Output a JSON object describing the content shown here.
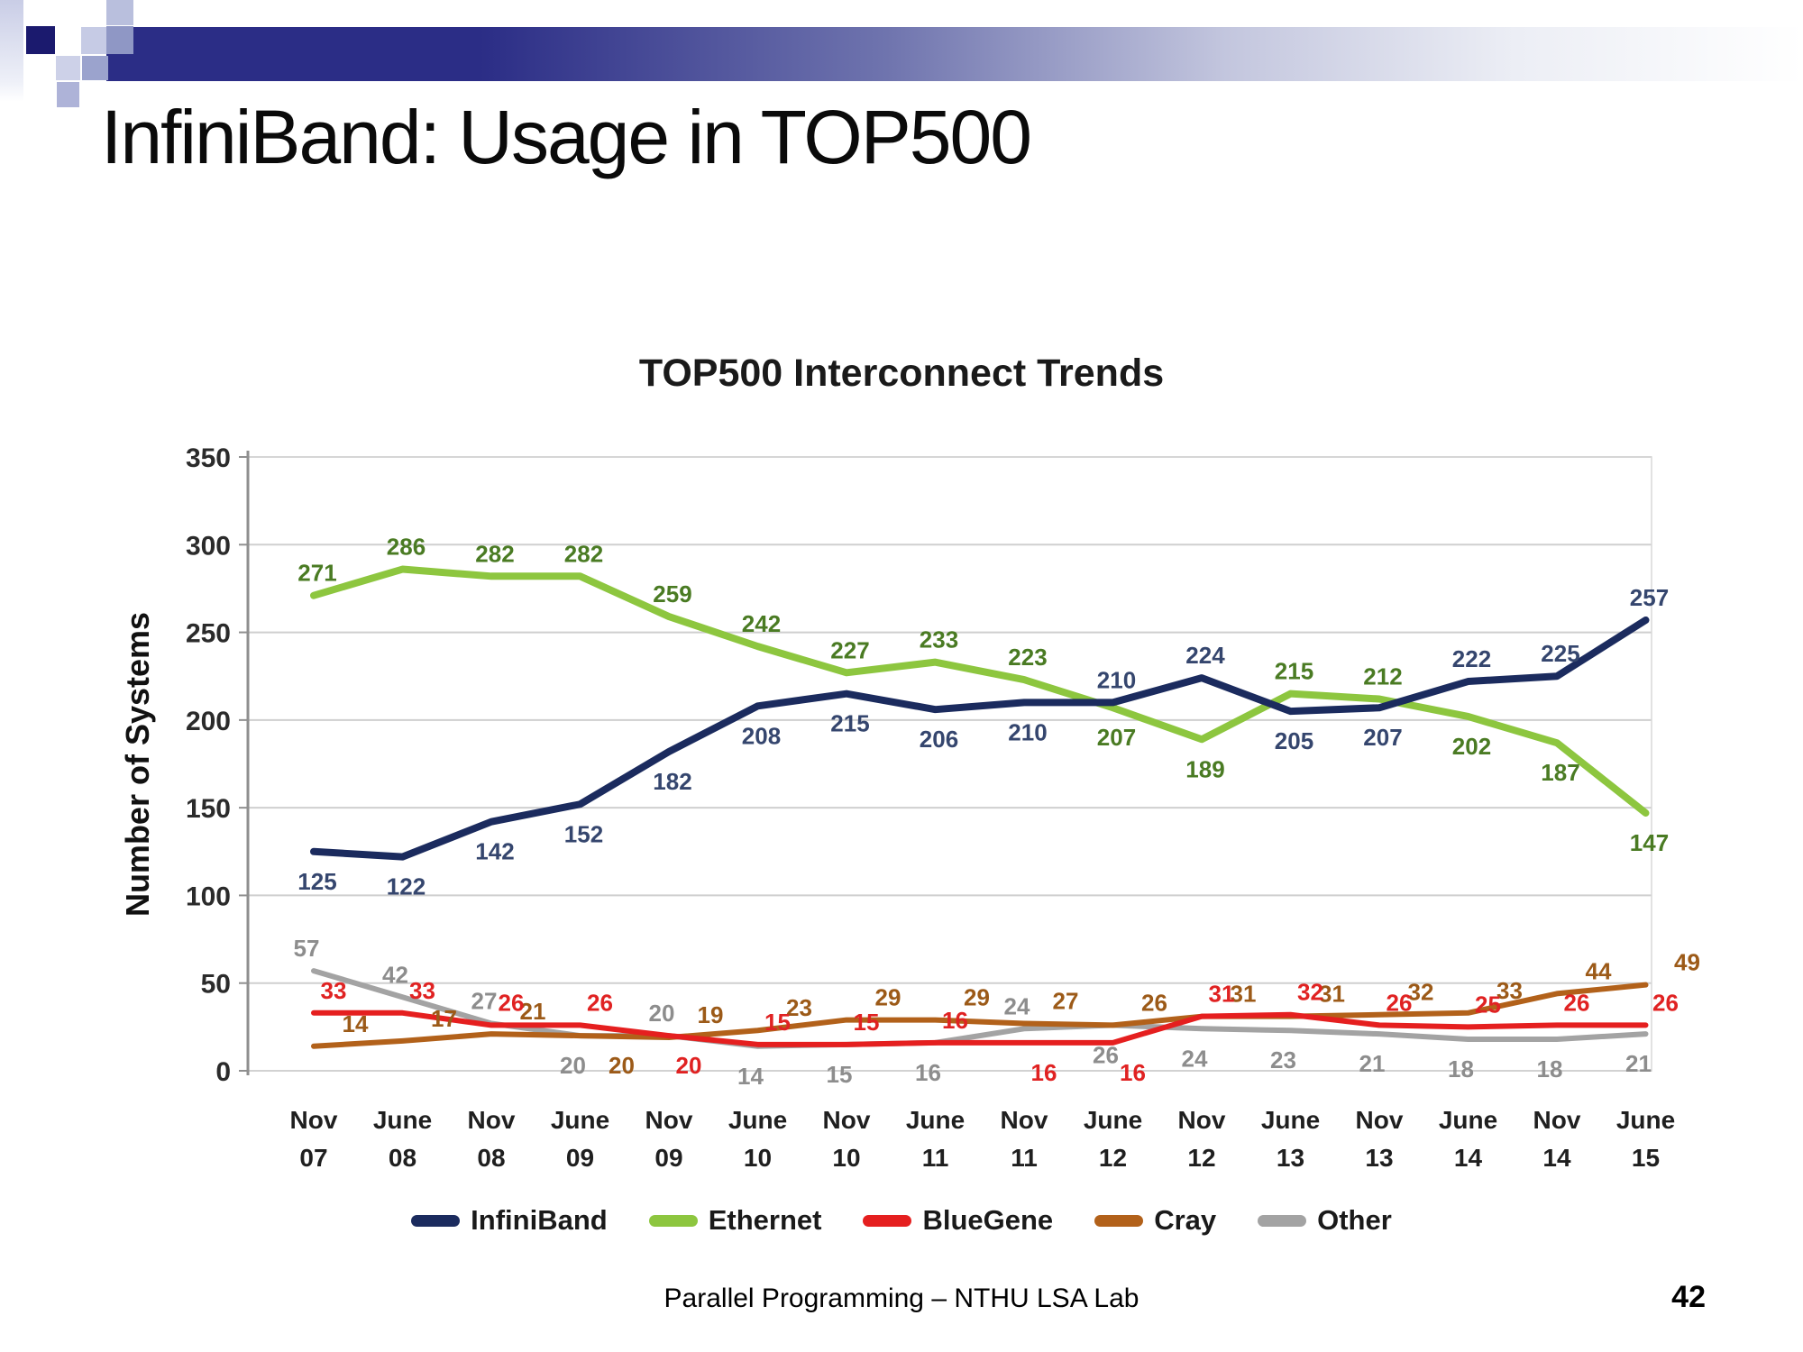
{
  "slide": {
    "title": "InfiniBand: Usage in TOP500",
    "footer": "Parallel Programming – NTHU LSA Lab",
    "page_number": "42"
  },
  "chart_data": {
    "type": "line",
    "title": "TOP500 Interconnect Trends",
    "xlabel": "",
    "ylabel": "Number of Systems",
    "ylim": [
      0,
      350
    ],
    "ytick_step": 50,
    "grid": true,
    "legend_position": "bottom",
    "categories": [
      "Nov 07",
      "June 08",
      "Nov 08",
      "June 09",
      "Nov 09",
      "June 10",
      "Nov 10",
      "June 11",
      "Nov 11",
      "June 12",
      "Nov 12",
      "June 13",
      "Nov 13",
      "June 14",
      "Nov 14",
      "June 15"
    ],
    "series": [
      {
        "name": "Other",
        "color": "#a3a3a3",
        "label_color": "#8d8d8d",
        "values": [
          57,
          42,
          27,
          20,
          20,
          14,
          15,
          16,
          24,
          26,
          24,
          23,
          21,
          18,
          18,
          21
        ],
        "label_pos": [
          "a",
          "a",
          "a",
          "b",
          "a",
          "b",
          "b",
          "b",
          "a",
          "b",
          "b",
          "b",
          "b",
          "b",
          "b",
          "b"
        ]
      },
      {
        "name": "Cray",
        "color": "#b2611a",
        "label_color": "#9c5a18",
        "values": [
          14,
          17,
          21,
          20,
          19,
          23,
          29,
          29,
          27,
          26,
          31,
          31,
          32,
          33,
          44,
          49
        ],
        "label_pos": [
          "a",
          "a",
          "a",
          "b",
          "a",
          "a",
          "a",
          "a",
          "a",
          "a",
          "a",
          "a",
          "a",
          "a",
          "a",
          "a"
        ]
      },
      {
        "name": "BlueGene",
        "color": "#e51f1f",
        "label_color": "#e02222",
        "values": [
          33,
          33,
          26,
          26,
          20,
          15,
          15,
          16,
          16,
          16,
          31,
          32,
          26,
          25,
          26,
          26
        ],
        "label_pos": [
          "a",
          "a",
          "a",
          "a",
          "b",
          "a",
          "a",
          "a",
          "b",
          "b",
          "a",
          "a",
          "a",
          "a",
          "a",
          "a"
        ]
      },
      {
        "name": "Ethernet",
        "color": "#8dc63f",
        "label_color": "#4a7b23",
        "values": [
          271,
          286,
          282,
          282,
          259,
          242,
          227,
          233,
          223,
          207,
          189,
          215,
          212,
          202,
          187,
          147
        ],
        "label_pos": [
          "a",
          "a",
          "a",
          "a",
          "a",
          "a",
          "a",
          "a",
          "a",
          "b",
          "b",
          "a",
          "a",
          "b",
          "b",
          "b"
        ]
      },
      {
        "name": "InfiniBand",
        "color": "#1b2b5e",
        "label_color": "#35466e",
        "values": [
          125,
          122,
          142,
          152,
          182,
          208,
          215,
          206,
          210,
          210,
          224,
          205,
          207,
          222,
          225,
          257
        ],
        "label_pos": [
          "b",
          "b",
          "b",
          "b",
          "b",
          "b",
          "b",
          "b",
          "b",
          "a",
          "a",
          "b",
          "b",
          "a",
          "a",
          "a"
        ]
      }
    ]
  }
}
